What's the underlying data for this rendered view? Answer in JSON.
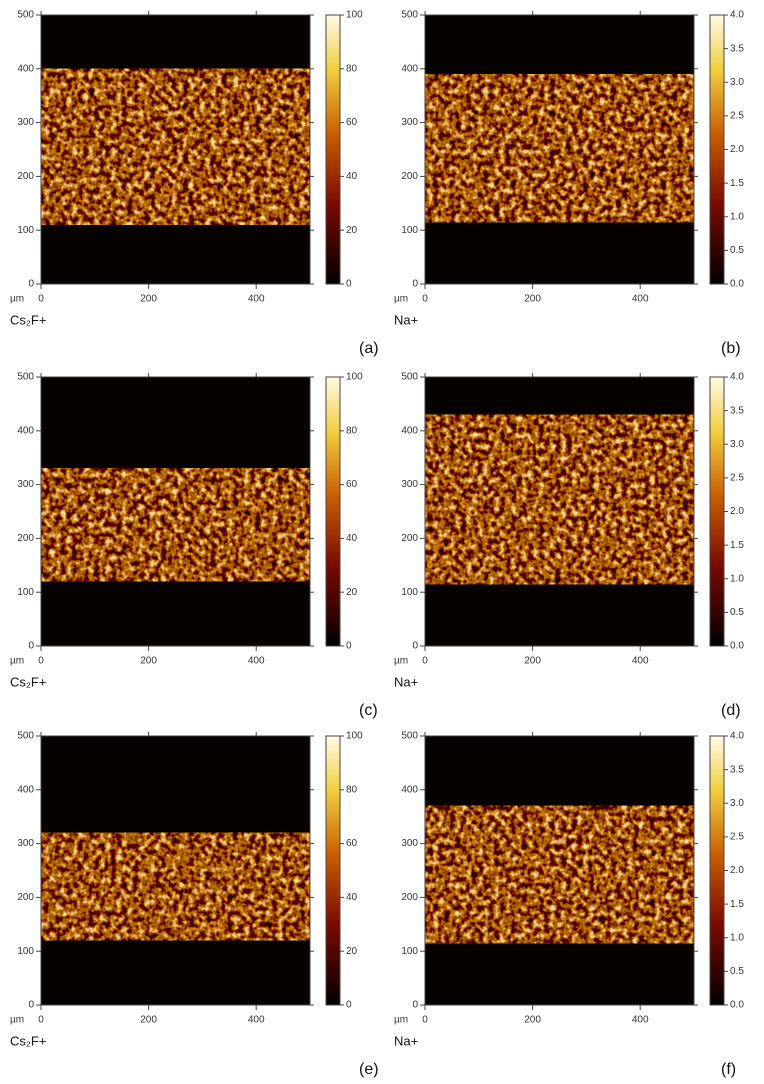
{
  "panels": [
    {
      "label": "(a)",
      "ion": "Cs₂F+",
      "unit": "µm",
      "xlim": [
        0,
        500
      ],
      "ylim": [
        0,
        500
      ],
      "xticks": [
        0,
        200,
        400
      ],
      "yticks": [
        0,
        100,
        200,
        300,
        400,
        500
      ],
      "colorbar": {
        "lim": [
          0,
          100
        ],
        "ticks": [
          0,
          20,
          40,
          60,
          80,
          100
        ]
      }
    },
    {
      "label": "(b)",
      "ion": "Na+",
      "unit": "µm",
      "xlim": [
        0,
        500
      ],
      "ylim": [
        0,
        500
      ],
      "xticks": [
        0,
        200,
        400
      ],
      "yticks": [
        0,
        100,
        200,
        300,
        400,
        500
      ],
      "colorbar": {
        "lim": [
          0,
          4
        ],
        "ticks": [
          {
            "value": 0,
            "label": "0.0"
          },
          0.5,
          {
            "value": 1,
            "label": "1.0"
          },
          1.5,
          {
            "value": 2,
            "label": "2.0"
          },
          2.5,
          {
            "value": 3,
            "label": "3.0"
          },
          3.5,
          {
            "value": 4,
            "label": "4.0"
          }
        ]
      }
    },
    {
      "label": "(c)",
      "ion": "Cs₂F+",
      "unit": "µm",
      "xlim": [
        0,
        500
      ],
      "ylim": [
        0,
        500
      ],
      "xticks": [
        0,
        200,
        400
      ],
      "yticks": [
        0,
        100,
        200,
        300,
        400,
        500
      ],
      "colorbar": {
        "lim": [
          0,
          100
        ],
        "ticks": [
          0,
          20,
          40,
          60,
          80,
          100
        ]
      }
    },
    {
      "label": "(d)",
      "ion": "Na+",
      "unit": "µm",
      "xlim": [
        0,
        500
      ],
      "ylim": [
        0,
        500
      ],
      "xticks": [
        0,
        200,
        400
      ],
      "yticks": [
        0,
        100,
        200,
        300,
        400,
        500
      ],
      "colorbar": {
        "lim": [
          0,
          4
        ],
        "ticks": [
          {
            "value": 0,
            "label": "0.0"
          },
          0.5,
          {
            "value": 1,
            "label": "1.0"
          },
          1.5,
          {
            "value": 2,
            "label": "2.0"
          },
          2.5,
          {
            "value": 3,
            "label": "3.0"
          },
          3.5,
          {
            "value": 4,
            "label": "4.0"
          }
        ]
      }
    },
    {
      "label": "(e)",
      "ion": "Cs₂F+",
      "unit": "µm",
      "xlim": [
        0,
        500
      ],
      "ylim": [
        0,
        500
      ],
      "xticks": [
        0,
        200,
        400
      ],
      "yticks": [
        0,
        100,
        200,
        300,
        400,
        500
      ],
      "colorbar": {
        "lim": [
          0,
          100
        ],
        "ticks": [
          0,
          20,
          40,
          60,
          80,
          100
        ]
      }
    },
    {
      "label": "(f)",
      "ion": "Na+",
      "unit": "µm",
      "xlim": [
        0,
        500
      ],
      "ylim": [
        0,
        500
      ],
      "xticks": [
        0,
        200,
        400
      ],
      "yticks": [
        0,
        100,
        200,
        300,
        400,
        500
      ],
      "colorbar": {
        "lim": [
          0,
          4
        ],
        "ticks": [
          {
            "value": 0,
            "label": "0.0"
          },
          0.5,
          {
            "value": 1,
            "label": "1.0"
          },
          1.5,
          {
            "value": 2,
            "label": "2.0"
          },
          2.5,
          {
            "value": 3,
            "label": "3.0"
          },
          3.5,
          {
            "value": 4,
            "label": "4.0"
          }
        ]
      }
    }
  ]
}
